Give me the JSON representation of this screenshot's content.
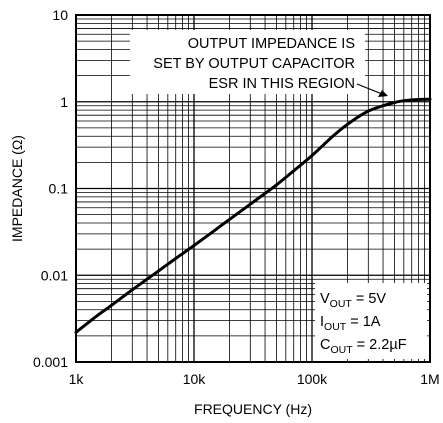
{
  "chart_data": {
    "type": "line",
    "title": "",
    "xlabel": "FREQUENCY (Hz)",
    "ylabel": "IMPEDANCE (Ω)",
    "x_scale": "log",
    "y_scale": "log",
    "xlim": [
      1000,
      1000000
    ],
    "ylim": [
      0.001,
      10
    ],
    "grid": true,
    "x_ticks": [
      "1k",
      "10k",
      "100k",
      "1M"
    ],
    "y_ticks": [
      "10",
      "1",
      "0.1",
      "0.01",
      "0.001"
    ],
    "series": [
      {
        "color": "#000000",
        "x": [
          1000,
          1500,
          2000,
          3000,
          5000,
          7000,
          10000,
          15000,
          20000,
          30000,
          50000,
          70000,
          100000,
          150000,
          200000,
          300000,
          500000,
          700000,
          1000000
        ],
        "y": [
          0.0022,
          0.0034,
          0.0045,
          0.0068,
          0.0112,
          0.0156,
          0.022,
          0.033,
          0.044,
          0.066,
          0.11,
          0.16,
          0.24,
          0.4,
          0.55,
          0.78,
          0.98,
          1.05,
          1.07
        ]
      }
    ],
    "annotations": {
      "region_lines": [
        "OUTPUT IMPEDANCE IS",
        "SET BY OUTPUT CAPACITOR",
        "ESR IN THIS REGION"
      ],
      "conditions": [
        {
          "main": "V",
          "sub": "OUT",
          "rest": " = 5V"
        },
        {
          "main": "I",
          "sub": "OUT",
          "rest": " = 1A"
        },
        {
          "main": "C",
          "sub": "OUT",
          "rest": " = 2.2µF"
        }
      ]
    }
  }
}
